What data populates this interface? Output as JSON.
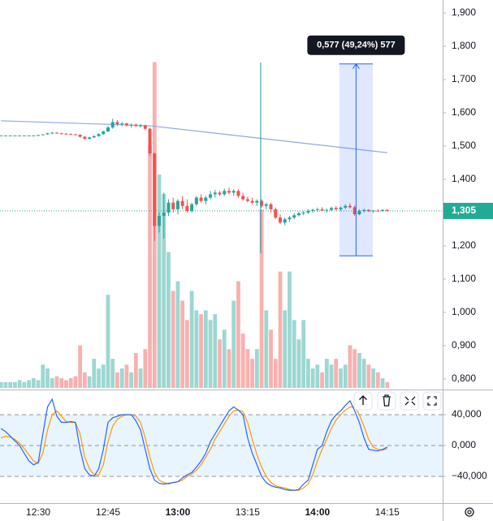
{
  "chart_data": {
    "type": "candlestick",
    "categories": [
      null,
      null,
      null,
      null,
      null,
      null,
      null,
      null,
      "12:30",
      null,
      null,
      null,
      null,
      null,
      null,
      null,
      null,
      null,
      null,
      null,
      null,
      null,
      null,
      "12:45",
      null,
      null,
      null,
      null,
      null,
      null,
      null,
      null,
      null,
      null,
      null,
      null,
      null,
      null,
      "13:00",
      null,
      null,
      null,
      null,
      null,
      null,
      null,
      null,
      null,
      null,
      null,
      null,
      null,
      null,
      "13:15",
      null,
      null,
      null,
      null,
      null,
      null,
      null,
      null,
      null,
      null,
      null,
      null,
      null,
      null,
      "14:00",
      null,
      null,
      null,
      null,
      null,
      null,
      null,
      null,
      null,
      null,
      null,
      null,
      null,
      null,
      "14:15"
    ],
    "open": [
      1.532,
      1.532,
      1.532,
      1.532,
      1.532,
      1.532,
      1.532,
      1.532,
      1.532,
      1.533,
      1.535,
      1.538,
      1.54,
      1.538,
      1.537,
      1.536,
      1.535,
      1.534,
      1.528,
      1.522,
      1.526,
      1.53,
      1.536,
      1.544,
      1.556,
      1.572,
      1.566,
      1.568,
      1.562,
      1.564,
      1.56,
      1.562,
      1.552,
      1.478,
      1.26,
      1.29,
      1.3,
      1.33,
      1.31,
      1.335,
      1.32,
      1.305,
      1.325,
      1.345,
      1.335,
      1.345,
      1.355,
      1.36,
      1.355,
      1.365,
      1.36,
      1.365,
      1.35,
      1.34,
      1.335,
      1.33,
      1.335,
      1.32,
      1.325,
      1.31,
      1.285,
      1.27,
      1.28,
      1.285,
      1.292,
      1.298,
      1.3,
      1.305,
      1.308,
      1.31,
      1.306,
      1.308,
      1.314,
      1.31,
      1.315,
      1.32,
      1.316,
      1.295,
      1.305,
      1.308,
      1.304,
      1.306,
      1.305,
      1.308
    ],
    "high": [
      1.532,
      1.532,
      1.532,
      1.532,
      1.532,
      1.532,
      1.532,
      1.532,
      1.534,
      1.535,
      1.54,
      1.542,
      1.542,
      1.54,
      1.539,
      1.538,
      1.537,
      1.535,
      1.53,
      1.528,
      1.532,
      1.538,
      1.546,
      1.56,
      1.582,
      1.578,
      1.572,
      1.57,
      1.568,
      1.568,
      1.566,
      1.564,
      1.555,
      1.48,
      1.3,
      1.36,
      1.34,
      1.345,
      1.34,
      1.35,
      1.34,
      1.33,
      1.35,
      1.355,
      1.35,
      1.365,
      1.368,
      1.365,
      1.372,
      1.375,
      1.37,
      1.37,
      1.36,
      1.348,
      1.345,
      1.34,
      1.34,
      1.33,
      1.33,
      1.315,
      1.295,
      1.285,
      1.29,
      1.298,
      1.302,
      1.305,
      1.31,
      1.312,
      1.315,
      1.316,
      1.312,
      1.318,
      1.32,
      1.318,
      1.325,
      1.328,
      1.322,
      1.31,
      1.312,
      1.31,
      1.308,
      1.31,
      1.31,
      1.31
    ],
    "low": [
      1.532,
      1.532,
      1.532,
      1.532,
      1.532,
      1.532,
      1.532,
      1.532,
      1.531,
      1.532,
      1.534,
      1.536,
      1.537,
      1.535,
      1.535,
      1.534,
      1.533,
      1.525,
      1.518,
      1.52,
      1.524,
      1.528,
      1.534,
      1.542,
      1.552,
      1.56,
      1.56,
      1.558,
      1.556,
      1.558,
      1.556,
      1.548,
      1.47,
      1.215,
      1.24,
      1.222,
      1.29,
      1.3,
      1.295,
      1.31,
      1.3,
      1.3,
      1.32,
      1.33,
      1.325,
      1.34,
      1.345,
      1.35,
      1.35,
      1.355,
      1.35,
      1.345,
      1.335,
      1.33,
      1.325,
      1.32,
      1.315,
      1.31,
      1.3,
      1.28,
      1.265,
      1.262,
      1.272,
      1.28,
      1.288,
      1.292,
      1.296,
      1.3,
      1.302,
      1.304,
      1.3,
      1.304,
      1.306,
      1.305,
      1.31,
      1.312,
      1.29,
      1.292,
      1.3,
      1.302,
      1.3,
      1.302,
      1.302,
      1.303
    ],
    "close": [
      1.532,
      1.532,
      1.532,
      1.532,
      1.532,
      1.532,
      1.532,
      1.532,
      1.533,
      1.535,
      1.538,
      1.54,
      1.538,
      1.537,
      1.536,
      1.535,
      1.534,
      1.528,
      1.522,
      1.526,
      1.53,
      1.536,
      1.544,
      1.556,
      1.572,
      1.566,
      1.568,
      1.562,
      1.564,
      1.56,
      1.562,
      1.552,
      1.478,
      1.26,
      1.29,
      1.3,
      1.33,
      1.31,
      1.335,
      1.32,
      1.305,
      1.325,
      1.345,
      1.335,
      1.345,
      1.355,
      1.36,
      1.355,
      1.365,
      1.36,
      1.365,
      1.35,
      1.34,
      1.335,
      1.33,
      1.335,
      1.32,
      1.325,
      1.31,
      1.285,
      1.27,
      1.28,
      1.285,
      1.292,
      1.298,
      1.3,
      1.305,
      1.308,
      1.31,
      1.306,
      1.308,
      1.314,
      1.31,
      1.315,
      1.32,
      1.316,
      1.295,
      1.305,
      1.308,
      1.304,
      1.306,
      1.305,
      1.308,
      1.305
    ],
    "volume": [
      3,
      3,
      3,
      3,
      4,
      3,
      4,
      5,
      4,
      12,
      10,
      5,
      6,
      5,
      4,
      5,
      6,
      22,
      8,
      6,
      15,
      10,
      12,
      48,
      15,
      8,
      10,
      12,
      8,
      18,
      10,
      20,
      125,
      168,
      110,
      100,
      70,
      50,
      55,
      45,
      35,
      50,
      40,
      38,
      40,
      35,
      38,
      25,
      30,
      20,
      45,
      55,
      28,
      20,
      15,
      20,
      92,
      40,
      30,
      15,
      60,
      40,
      60,
      35,
      25,
      35,
      15,
      10,
      12,
      8,
      15,
      12,
      15,
      10,
      12,
      22,
      20,
      18,
      15,
      12,
      10,
      8,
      5,
      3
    ],
    "volume_lim": [
      0,
      200
    ],
    "up_color": "#26a69a",
    "down_color": "#ef5350",
    "ylim": [
      0.773,
      1.939
    ],
    "yticks": [
      {
        "value": 1.9,
        "label": "1,900"
      },
      {
        "value": 1.8,
        "label": "1,800"
      },
      {
        "value": 1.7,
        "label": "1,700"
      },
      {
        "value": 1.6,
        "label": "1,600"
      },
      {
        "value": 1.5,
        "label": "1,500"
      },
      {
        "value": 1.4,
        "label": "1,400"
      },
      {
        "value": 1.3,
        "label": "1,300"
      },
      {
        "value": 1.2,
        "label": "1,200"
      },
      {
        "value": 1.1,
        "label": "1,100"
      },
      {
        "value": 1.0,
        "label": "1,000"
      },
      {
        "value": 0.9,
        "label": "0,900"
      },
      {
        "value": 0.8,
        "label": "0,800"
      }
    ],
    "last_price": {
      "value": 1.305,
      "label": "1,305",
      "color": "#22ab94"
    },
    "trend_line": {
      "color": "#8fa8e0",
      "x": [
        0,
        32,
        83
      ],
      "values": [
        1.576,
        1.561,
        1.48
      ]
    },
    "vline": {
      "color": "#1e8fa8",
      "x": 55.8,
      "values": [
        1.178,
        1.751
      ]
    },
    "measure": {
      "label": "0,577 (49,24%) 577",
      "x": [
        72.7,
        79.9
      ],
      "values": [
        1.17,
        1.747
      ],
      "color": "#2962ff"
    },
    "oscillator": {
      "ylim": [
        -74.7,
        70.5
      ],
      "yticks": [
        {
          "value": 40,
          "label": "40,000"
        },
        {
          "value": 0,
          "label": "0,000"
        },
        {
          "value": -40,
          "label": "−40,000"
        }
      ],
      "series": [
        {
          "color": "#2962ff",
          "values": [
            22,
            18,
            12,
            6,
            0,
            -10,
            -20,
            -25,
            -22,
            15,
            50,
            60,
            38,
            30,
            30,
            31,
            30,
            -5,
            -30,
            -38,
            -40,
            -30,
            -5,
            30,
            36,
            38,
            40,
            40,
            40,
            32,
            20,
            -5,
            -30,
            -45,
            -49,
            -50,
            -49,
            -48,
            -47,
            -42,
            -38,
            -35,
            -28,
            -20,
            -10,
            5,
            15,
            25,
            35,
            45,
            50,
            46,
            40,
            10,
            -10,
            -25,
            -40,
            -48,
            -52,
            -54,
            -55,
            -57,
            -58,
            -58,
            -57,
            -50,
            -45,
            -25,
            -5,
            0,
            18,
            32,
            40,
            45,
            52,
            58,
            45,
            30,
            10,
            -5,
            -6,
            -7,
            -5,
            -2
          ]
        },
        {
          "color": "#ff9800",
          "values": [
            10,
            12,
            11,
            8,
            3,
            -4,
            -12,
            -20,
            -23,
            -10,
            20,
            40,
            45,
            38,
            31,
            30,
            30,
            15,
            -15,
            -30,
            -38,
            -38,
            -25,
            5,
            25,
            34,
            38,
            40,
            40,
            38,
            30,
            10,
            -15,
            -35,
            -45,
            -48,
            -50,
            -48,
            -47,
            -45,
            -40,
            -37,
            -32,
            -25,
            -15,
            -5,
            8,
            18,
            28,
            38,
            45,
            46,
            44,
            30,
            8,
            -12,
            -28,
            -40,
            -48,
            -52,
            -54,
            -55,
            -57,
            -58,
            -58,
            -55,
            -50,
            -38,
            -20,
            -5,
            8,
            22,
            33,
            40,
            46,
            50,
            50,
            40,
            25,
            8,
            -2,
            -5,
            -6,
            -4
          ]
        }
      ]
    }
  }
}
